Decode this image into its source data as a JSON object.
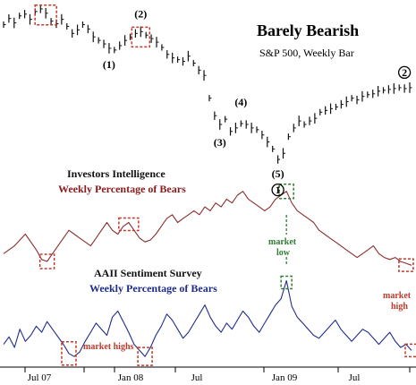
{
  "chart_data": [
    {
      "type": "bar",
      "name": "sp500",
      "title": "Barely Bearish",
      "subtitle": "S&P 500, Weekly Bar",
      "series_color": "#111111",
      "values": [
        1470,
        1505,
        1480,
        1520,
        1530,
        1500,
        1545,
        1560,
        1535,
        1490,
        1475,
        1500,
        1460,
        1420,
        1440,
        1470,
        1445,
        1400,
        1380,
        1360,
        1335,
        1325,
        1350,
        1380,
        1400,
        1420,
        1430,
        1410,
        1390,
        1370,
        1340,
        1300,
        1280,
        1270,
        1260,
        1290,
        1250,
        1210,
        1180,
        1050,
        950,
        900,
        930,
        860,
        880,
        905,
        900,
        880,
        870,
        840,
        800,
        760,
        700,
        735,
        830,
        880,
        920,
        900,
        920,
        935,
        970,
        980,
        990,
        1000,
        1015,
        1030,
        1050,
        1040,
        1060,
        1070,
        1075,
        1090,
        1095,
        1100,
        1105,
        1110,
        1105,
        1110
      ],
      "wave_labels": [
        {
          "text": "(1)",
          "index": 20
        },
        {
          "text": "(2)",
          "index": 26
        },
        {
          "text": "(3)",
          "index": 41
        },
        {
          "text": "(4)",
          "index": 45
        },
        {
          "text": "(5)",
          "index": 52
        },
        {
          "text": "1",
          "index": 52
        },
        {
          "text": "2",
          "index": 76
        }
      ]
    },
    {
      "type": "line",
      "name": "investors_intelligence",
      "title": "Investors Intelligence",
      "subtitle": "Weekly Percentage of Bears",
      "series_color": "#8b2e2e",
      "values": [
        18,
        20,
        22,
        25,
        28,
        24,
        20,
        15,
        14,
        18,
        22,
        26,
        30,
        28,
        26,
        24,
        22,
        26,
        30,
        34,
        30,
        28,
        32,
        34,
        30,
        26,
        24,
        25,
        28,
        32,
        36,
        38,
        34,
        36,
        38,
        40,
        38,
        42,
        40,
        44,
        42,
        46,
        44,
        48,
        50,
        46,
        44,
        42,
        40,
        42,
        46,
        48,
        50,
        44,
        40,
        38,
        36,
        34,
        30,
        28,
        26,
        24,
        22,
        20,
        18,
        16,
        18,
        20,
        22,
        18,
        16,
        15,
        16,
        14,
        13,
        12
      ],
      "annotation": [
        "market",
        "low"
      ]
    },
    {
      "type": "line",
      "name": "aaii",
      "title": "AAII Sentiment Survey",
      "subtitle": "Weekly Percentage of Bears",
      "series_color": "#1f2d8a",
      "values": [
        30,
        35,
        28,
        40,
        32,
        36,
        42,
        38,
        45,
        40,
        35,
        30,
        24,
        22,
        25,
        32,
        38,
        44,
        40,
        36,
        48,
        52,
        45,
        38,
        30,
        26,
        22,
        28,
        36,
        42,
        50,
        46,
        40,
        34,
        38,
        44,
        50,
        56,
        48,
        42,
        38,
        44,
        40,
        46,
        52,
        48,
        42,
        38,
        44,
        50,
        56,
        60,
        72,
        55,
        48,
        44,
        40,
        36,
        34,
        38,
        42,
        46,
        40,
        36,
        32,
        36,
        40,
        38,
        34,
        30,
        34,
        38,
        32,
        28,
        30,
        26
      ],
      "annotation": "market highs"
    }
  ],
  "x_axis": {
    "tick_labels": [
      "Jul 07",
      "Jan 08",
      "Jul",
      "Jan 09",
      "Jul"
    ]
  },
  "annotations": {
    "market_high": [
      "market",
      "high"
    ]
  }
}
